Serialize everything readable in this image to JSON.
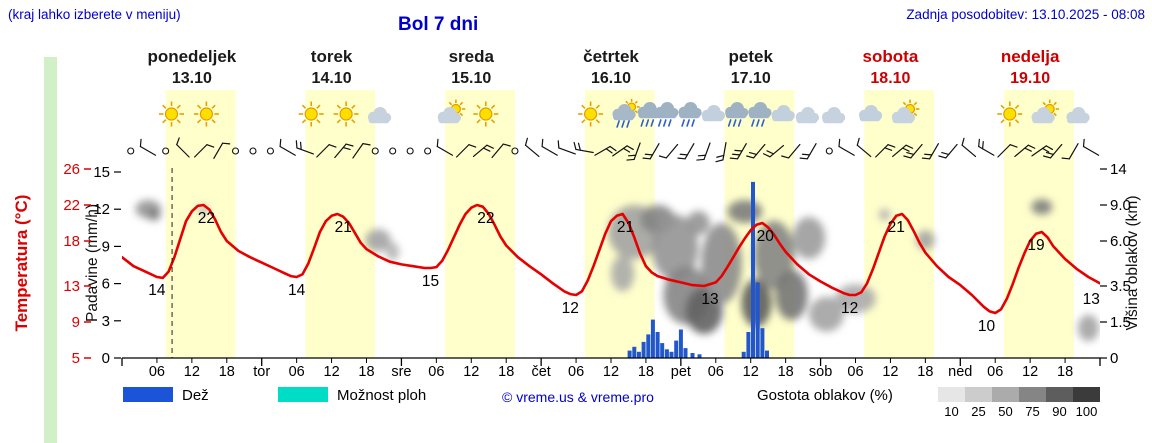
{
  "header": {
    "hint": "(kraj lahko izberete v meniju)",
    "title": "Bol 7 dni",
    "updated": "Zadnja posodobitev: 13.10.2025 - 08:08"
  },
  "days": [
    {
      "name": "ponedeljek",
      "date": "13.10",
      "abbrev": "",
      "weekend": false
    },
    {
      "name": "torek",
      "date": "14.10",
      "abbrev": "tor",
      "weekend": false
    },
    {
      "name": "sreda",
      "date": "15.10",
      "abbrev": "sre",
      "weekend": false
    },
    {
      "name": "četrtek",
      "date": "16.10",
      "abbrev": "čet",
      "weekend": false
    },
    {
      "name": "petek",
      "date": "17.10",
      "abbrev": "pet",
      "weekend": false
    },
    {
      "name": "sobota",
      "date": "18.10",
      "abbrev": "sob",
      "weekend": true
    },
    {
      "name": "nedelja",
      "date": "19.10",
      "abbrev": "ned",
      "weekend": true
    }
  ],
  "axes": {
    "temp": {
      "label": "Temperatura (°C)",
      "color": "#dd0000",
      "ticks": [
        26,
        22,
        18,
        13,
        9,
        5
      ]
    },
    "precip": {
      "label": "Padavine (mm/h)",
      "ticks": [
        15,
        12,
        9,
        6,
        3,
        0
      ]
    },
    "cloud": {
      "label": "Višina oblakov (km)",
      "ticks": [
        "14",
        "9.0",
        "6.0",
        "3.5",
        "1.5",
        "0"
      ]
    },
    "hour_labels": [
      "06",
      "12",
      "18"
    ]
  },
  "legend": {
    "rain_label": "Dež",
    "rain_color": "#1b54d9",
    "showers_label": "Možnost ploh",
    "showers_color": "#00ddc6",
    "copyright": "© vreme.us & vreme.pro",
    "cloud_density_label": "Gostota oblakov (%)",
    "density_ticks": [
      "10",
      "25",
      "50",
      "75",
      "90",
      "100"
    ],
    "density_colors": [
      "#e6e6e6",
      "#cccccc",
      "#ababab",
      "#858585",
      "#5d5d5d",
      "#3b3b3b"
    ]
  },
  "chart_data": {
    "type": "line",
    "title": "Bol 7 dni",
    "x_unit": "hour_of_week",
    "x_range": [
      0,
      168
    ],
    "temp_range": [
      5,
      26
    ],
    "precip_range": [
      0,
      15
    ],
    "cloud_km_ticks": [
      0,
      1.5,
      3.5,
      6,
      9,
      14
    ],
    "now_hour": 8.6,
    "daylight_hours": [
      7.5,
      19.5
    ],
    "daily_summary": [
      {
        "day": "ponedeljek",
        "tmin": 14,
        "tmax": 22
      },
      {
        "day": "torek",
        "tmin": 14,
        "tmax": 21
      },
      {
        "day": "sreda",
        "tmin": 15,
        "tmax": 22
      },
      {
        "day": "četrtek",
        "tmin": 12,
        "tmax": 21
      },
      {
        "day": "petek",
        "tmin": 13,
        "tmax": 20
      },
      {
        "day": "sobota",
        "tmin": 12,
        "tmax": 21
      },
      {
        "day": "nedelja",
        "tmin": 10,
        "tmax": 19
      }
    ],
    "temperature": {
      "name": "Temperatura",
      "unit": "°C",
      "color": "#e60000",
      "points": [
        [
          0,
          16.2
        ],
        [
          2,
          15.2
        ],
        [
          4,
          14.6
        ],
        [
          6,
          14
        ],
        [
          7,
          13.9
        ],
        [
          8,
          14.6
        ],
        [
          9,
          16.2
        ],
        [
          10,
          18.2
        ],
        [
          11,
          20.2
        ],
        [
          12,
          21.3
        ],
        [
          13,
          21.9
        ],
        [
          14,
          22
        ],
        [
          15,
          21.5
        ],
        [
          16,
          20.4
        ],
        [
          17,
          19
        ],
        [
          18,
          18
        ],
        [
          20,
          16.9
        ],
        [
          22,
          16.2
        ],
        [
          24,
          15.6
        ],
        [
          26,
          15
        ],
        [
          28,
          14.4
        ],
        [
          29,
          14.1
        ],
        [
          30,
          14
        ],
        [
          31,
          14.3
        ],
        [
          32,
          15.5
        ],
        [
          33,
          17.2
        ],
        [
          34,
          19
        ],
        [
          35,
          20.2
        ],
        [
          36,
          20.8
        ],
        [
          37,
          21
        ],
        [
          38,
          20.7
        ],
        [
          39,
          20
        ],
        [
          40,
          18.9
        ],
        [
          41,
          17.8
        ],
        [
          42,
          17.1
        ],
        [
          44,
          16.3
        ],
        [
          46,
          15.7
        ],
        [
          48,
          15.4
        ],
        [
          50,
          15.2
        ],
        [
          52,
          15
        ],
        [
          53,
          15
        ],
        [
          54,
          15.1
        ],
        [
          55,
          15.8
        ],
        [
          56,
          17
        ],
        [
          57,
          18.4
        ],
        [
          58,
          19.8
        ],
        [
          59,
          21
        ],
        [
          60,
          21.7
        ],
        [
          61,
          22
        ],
        [
          62,
          21.8
        ],
        [
          63,
          21
        ],
        [
          64,
          19.8
        ],
        [
          65,
          18.5
        ],
        [
          66,
          17.5
        ],
        [
          68,
          16.2
        ],
        [
          70,
          15.2
        ],
        [
          72,
          14.3
        ],
        [
          74,
          13.3
        ],
        [
          76,
          12.4
        ],
        [
          77,
          12.1
        ],
        [
          78,
          12
        ],
        [
          79,
          12.4
        ],
        [
          80,
          13.6
        ],
        [
          81,
          15.2
        ],
        [
          82,
          17
        ],
        [
          83,
          18.8
        ],
        [
          84,
          20.2
        ],
        [
          85,
          20.8
        ],
        [
          86,
          21
        ],
        [
          87,
          20
        ],
        [
          88,
          18.4
        ],
        [
          89,
          16.6
        ],
        [
          90,
          15.2
        ],
        [
          91,
          14.5
        ],
        [
          92,
          14.1
        ],
        [
          94,
          13.7
        ],
        [
          96,
          13.4
        ],
        [
          98,
          13.1
        ],
        [
          100,
          13
        ],
        [
          102,
          13.4
        ],
        [
          103,
          14.1
        ],
        [
          104,
          15.1
        ],
        [
          105,
          16.2
        ],
        [
          106,
          17.3
        ],
        [
          107,
          18.3
        ],
        [
          108,
          19.2
        ],
        [
          109,
          19.8
        ],
        [
          110,
          20
        ],
        [
          111,
          19.5
        ],
        [
          112,
          18.7
        ],
        [
          113,
          17.7
        ],
        [
          114,
          16.8
        ],
        [
          116,
          15.4
        ],
        [
          118,
          14.3
        ],
        [
          120,
          13.5
        ],
        [
          122,
          12.8
        ],
        [
          124,
          12.2
        ],
        [
          125,
          12
        ],
        [
          126,
          12
        ],
        [
          127,
          12.3
        ],
        [
          128,
          13.3
        ],
        [
          129,
          14.9
        ],
        [
          130,
          16.7
        ],
        [
          131,
          18.5
        ],
        [
          132,
          19.9
        ],
        [
          133,
          20.8
        ],
        [
          134,
          21
        ],
        [
          135,
          20.3
        ],
        [
          136,
          19.1
        ],
        [
          137,
          17.8
        ],
        [
          138,
          16.7
        ],
        [
          140,
          15.2
        ],
        [
          142,
          14
        ],
        [
          144,
          13.1
        ],
        [
          146,
          12
        ],
        [
          148,
          10.7
        ],
        [
          149,
          10.2
        ],
        [
          150,
          10
        ],
        [
          151,
          10.4
        ],
        [
          152,
          11.6
        ],
        [
          153,
          13.2
        ],
        [
          154,
          15
        ],
        [
          155,
          16.6
        ],
        [
          156,
          18
        ],
        [
          157,
          18.8
        ],
        [
          158,
          19
        ],
        [
          159,
          18.4
        ],
        [
          160,
          17.4
        ],
        [
          162,
          16
        ],
        [
          164,
          14.9
        ],
        [
          166,
          14
        ],
        [
          168,
          13.3
        ]
      ],
      "value_labels": [
        [
          6,
          14
        ],
        [
          14.5,
          22
        ],
        [
          30,
          14
        ],
        [
          38,
          21
        ],
        [
          53,
          15
        ],
        [
          62.5,
          22
        ],
        [
          77,
          12
        ],
        [
          86.5,
          21
        ],
        [
          101,
          13
        ],
        [
          110.5,
          20
        ],
        [
          125,
          12
        ],
        [
          133,
          21
        ],
        [
          148.5,
          10
        ],
        [
          157,
          19
        ],
        [
          166.5,
          13
        ]
      ]
    },
    "precipitation": {
      "name": "Dež",
      "unit": "mm/h",
      "color": "#2256cc",
      "bars": [
        [
          87.2,
          0.6
        ],
        [
          88,
          0.9
        ],
        [
          88.8,
          0.5
        ],
        [
          89.6,
          1.3
        ],
        [
          90.4,
          1.9
        ],
        [
          91.2,
          3.1
        ],
        [
          92,
          2.1
        ],
        [
          92.8,
          1.2
        ],
        [
          93.6,
          0.7
        ],
        [
          94.4,
          0.5
        ],
        [
          95.2,
          1.4
        ],
        [
          96,
          2.3
        ],
        [
          96.8,
          0.8
        ],
        [
          98,
          0.4
        ],
        [
          99.2,
          0.3
        ],
        [
          106.8,
          0.5
        ],
        [
          107.6,
          2.1
        ],
        [
          108.4,
          14.2
        ],
        [
          109.2,
          6.1
        ],
        [
          110,
          2.4
        ],
        [
          110.8,
          0.6
        ]
      ]
    },
    "cloud_cover_blobs": [
      [
        4.5,
        8.8,
        2.2,
        0.9,
        55
      ],
      [
        5.5,
        8.2,
        1.1,
        0.5,
        70
      ],
      [
        14,
        8.6,
        0.8,
        0.4,
        35
      ],
      [
        44,
        6.2,
        2.2,
        0.8,
        45
      ],
      [
        46.5,
        5.4,
        1.1,
        0.5,
        35
      ],
      [
        86,
        4.2,
        2.0,
        1.0,
        40
      ],
      [
        88,
        7.0,
        4.5,
        2.0,
        45
      ],
      [
        92,
        7.8,
        3.0,
        1.2,
        65
      ],
      [
        95,
        6.0,
        4.0,
        2.2,
        55
      ],
      [
        97,
        3.0,
        4.0,
        1.6,
        65
      ],
      [
        100,
        2.2,
        3.2,
        1.2,
        85
      ],
      [
        99,
        7.5,
        2.0,
        1.0,
        55
      ],
      [
        103,
        5.0,
        3.5,
        2.5,
        60
      ],
      [
        107,
        8.6,
        3.0,
        1.1,
        70
      ],
      [
        109,
        2.6,
        2.6,
        1.3,
        90
      ],
      [
        112,
        5.5,
        3.5,
        2.2,
        65
      ],
      [
        115,
        3.0,
        2.8,
        1.4,
        75
      ],
      [
        118,
        6.5,
        2.8,
        1.5,
        50
      ],
      [
        121,
        2.0,
        3.0,
        0.9,
        45
      ],
      [
        126,
        2.8,
        3.5,
        0.8,
        40
      ],
      [
        131,
        8.2,
        1.0,
        0.5,
        35
      ],
      [
        138,
        6.2,
        1.6,
        0.7,
        45
      ],
      [
        158,
        9.0,
        1.8,
        0.8,
        70
      ],
      [
        166,
        1.3,
        1.8,
        0.6,
        45
      ]
    ],
    "icons": [
      [
        2.5,
        "moon"
      ],
      [
        8.5,
        "sun"
      ],
      [
        14.5,
        "sun"
      ],
      [
        20.5,
        "moon"
      ],
      [
        26.5,
        "moon"
      ],
      [
        32.5,
        "sun"
      ],
      [
        38.5,
        "sun"
      ],
      [
        44.5,
        "moon-cloud"
      ],
      [
        50.5,
        "moon"
      ],
      [
        56.5,
        "sun-cloud"
      ],
      [
        62.5,
        "sun"
      ],
      [
        68.5,
        "moon"
      ],
      [
        74.5,
        "moon"
      ],
      [
        80.5,
        "sun"
      ],
      [
        86.5,
        "sun-rain"
      ],
      [
        90.5,
        "rain"
      ],
      [
        93.5,
        "rain"
      ],
      [
        97.5,
        "rain"
      ],
      [
        101.5,
        "cloud"
      ],
      [
        105.5,
        "rain"
      ],
      [
        109.5,
        "rain"
      ],
      [
        113.5,
        "cloud"
      ],
      [
        118,
        "moon-cloud"
      ],
      [
        122.5,
        "moon-cloud"
      ],
      [
        128.5,
        "cloud"
      ],
      [
        134.5,
        "sun-cloud"
      ],
      [
        140.5,
        "moon"
      ],
      [
        146.5,
        "moon"
      ],
      [
        152.5,
        "sun"
      ],
      [
        158.5,
        "sun-cloud"
      ],
      [
        164.5,
        "moon-cloud"
      ]
    ],
    "winds": [
      [
        1.5,
        -1,
        0
      ],
      [
        4.5,
        300,
        1
      ],
      [
        7.5,
        -1,
        0
      ],
      [
        10.5,
        315,
        1
      ],
      [
        13.5,
        45,
        1
      ],
      [
        16.5,
        30,
        1
      ],
      [
        19.5,
        -1,
        0
      ],
      [
        22.5,
        -1,
        0
      ],
      [
        25.5,
        -1,
        0
      ],
      [
        28.5,
        300,
        1
      ],
      [
        31.5,
        290,
        2
      ],
      [
        34.5,
        45,
        1
      ],
      [
        37.5,
        40,
        2
      ],
      [
        40.5,
        35,
        1
      ],
      [
        43.5,
        -1,
        0
      ],
      [
        46.5,
        -1,
        0
      ],
      [
        49.5,
        -1,
        0
      ],
      [
        52.5,
        -1,
        0
      ],
      [
        55.5,
        300,
        1
      ],
      [
        58.5,
        45,
        1
      ],
      [
        61.5,
        50,
        2
      ],
      [
        64.5,
        40,
        1
      ],
      [
        67.5,
        -1,
        0
      ],
      [
        70.5,
        310,
        1
      ],
      [
        73.5,
        300,
        1
      ],
      [
        76.5,
        290,
        1
      ],
      [
        79.5,
        280,
        2
      ],
      [
        82.5,
        60,
        2
      ],
      [
        85.5,
        55,
        2
      ],
      [
        88.5,
        200,
        2
      ],
      [
        91.5,
        210,
        2
      ],
      [
        94.5,
        220,
        1
      ],
      [
        97.5,
        210,
        2
      ],
      [
        100.5,
        200,
        2
      ],
      [
        103.5,
        190,
        2
      ],
      [
        106.5,
        210,
        3
      ],
      [
        109.5,
        220,
        2
      ],
      [
        112.5,
        230,
        2
      ],
      [
        115.5,
        220,
        1
      ],
      [
        118.5,
        210,
        2
      ],
      [
        121.5,
        -1,
        0
      ],
      [
        124.5,
        300,
        1
      ],
      [
        127.5,
        310,
        1
      ],
      [
        130.5,
        45,
        2
      ],
      [
        133.5,
        50,
        2
      ],
      [
        136.5,
        220,
        2
      ],
      [
        139.5,
        210,
        2
      ],
      [
        142.5,
        220,
        2
      ],
      [
        145.5,
        310,
        1
      ],
      [
        148.5,
        300,
        2
      ],
      [
        151.5,
        45,
        1
      ],
      [
        154.5,
        50,
        2
      ],
      [
        157.5,
        55,
        2
      ],
      [
        160.5,
        220,
        2
      ],
      [
        163.5,
        210,
        1
      ],
      [
        166.5,
        300,
        1
      ]
    ]
  }
}
